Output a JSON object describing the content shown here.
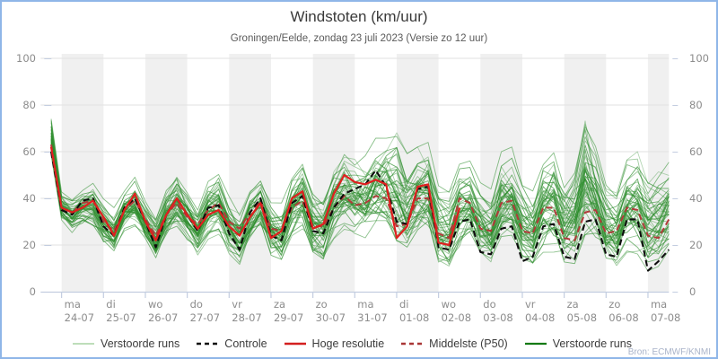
{
  "header": {
    "title": "Windstoten (km/uur)",
    "subtitle": "Groningen/Eelde, zondag 23 juli 2023 (Versie zo 12 uur)"
  },
  "source": {
    "label": "Bron: ECMWF/KNMI"
  },
  "colors": {
    "frame": "#8fb6e8",
    "band": "#f0f0f0",
    "grid": "#e2e2e2",
    "axis": "#c3cde0",
    "tick_label": "#8c8c8c",
    "ensemble": "#2e8e2e",
    "control": "#0d0d0d",
    "hires": "#e01f1f",
    "p50": "#b13a3a"
  },
  "legend": {
    "items": [
      {
        "label": "Verstoorde runs",
        "color": "#a9d3a4",
        "dash": "none",
        "sw": "1.6"
      },
      {
        "label": "Controle",
        "color": "#111111",
        "dash": "5 4",
        "sw": "2.4"
      },
      {
        "label": "Hoge resolutie",
        "color": "#d42020",
        "dash": "none",
        "sw": "2.6"
      },
      {
        "label": "Middelste (P50)",
        "color": "#a93636",
        "dash": "5 4",
        "sw": "2.4"
      },
      {
        "label": "Verstoorde runs",
        "color": "#157a15",
        "dash": "none",
        "sw": "2.2"
      }
    ]
  },
  "chart_data": {
    "type": "line",
    "title": "Windstoten (km/uur)",
    "subtitle": "Groningen/Eelde, zondag 23 juli 2023 (Versie zo 12 uur)",
    "ylabel": "km/uur",
    "ylim": [
      0,
      100
    ],
    "y_ticks": [
      0,
      20,
      40,
      60,
      80,
      100
    ],
    "grid": true,
    "legend_position": "bottom",
    "run_start": "zondag 23 juli 2023 12:00",
    "x_days": [
      {
        "dow": "ma",
        "date": "24-07",
        "shaded": true
      },
      {
        "dow": "di",
        "date": "25-07",
        "shaded": false
      },
      {
        "dow": "wo",
        "date": "26-07",
        "shaded": true
      },
      {
        "dow": "do",
        "date": "27-07",
        "shaded": false
      },
      {
        "dow": "vr",
        "date": "28-07",
        "shaded": true
      },
      {
        "dow": "za",
        "date": "29-07",
        "shaded": false
      },
      {
        "dow": "zo",
        "date": "30-07",
        "shaded": true
      },
      {
        "dow": "ma",
        "date": "31-07",
        "shaded": false
      },
      {
        "dow": "di",
        "date": "01-08",
        "shaded": true
      },
      {
        "dow": "wo",
        "date": "02-08",
        "shaded": false
      },
      {
        "dow": "do",
        "date": "03-08",
        "shaded": true
      },
      {
        "dow": "vr",
        "date": "04-08",
        "shaded": false
      },
      {
        "dow": "za",
        "date": "05-08",
        "shaded": true
      },
      {
        "dow": "zo",
        "date": "06-08",
        "shaded": false
      },
      {
        "dow": "ma",
        "date": "07-08",
        "shaded": true
      }
    ],
    "x_hours_since_run": [
      6,
      12,
      18,
      24,
      30,
      36,
      42,
      48,
      54,
      60,
      66,
      72,
      78,
      84,
      90,
      96,
      102,
      108,
      114,
      120,
      126,
      132,
      138,
      144,
      150,
      156,
      162,
      168,
      174,
      180,
      186,
      192,
      198,
      204,
      210,
      216,
      222,
      228,
      234,
      240,
      246,
      252,
      258,
      264,
      270,
      276,
      282,
      288,
      294,
      300,
      306,
      312,
      318,
      324,
      330,
      336,
      342,
      348,
      354,
      360
    ],
    "series": [
      {
        "name": "Controle",
        "values": [
          60,
          35,
          33,
          39,
          40,
          28,
          24,
          36,
          40,
          30,
          19,
          33,
          40,
          33,
          26,
          36,
          37,
          25,
          18,
          34,
          40,
          24,
          22,
          38,
          41,
          26,
          25,
          36,
          42,
          44,
          46,
          52,
          45,
          30,
          29,
          44,
          45,
          19,
          18,
          30,
          31,
          17,
          16,
          27,
          28,
          13,
          15,
          28,
          29,
          15,
          14,
          30,
          31,
          16,
          15,
          31,
          31,
          9,
          13,
          18
        ]
      },
      {
        "name": "Hoge resolutie",
        "values": [
          62,
          36,
          34,
          36,
          39,
          32,
          24,
          35,
          42,
          30,
          22,
          33,
          40,
          33,
          27,
          33,
          35,
          28,
          24,
          32,
          38,
          23,
          26,
          40,
          43,
          27,
          29,
          42,
          50,
          47,
          46,
          48,
          46,
          23,
          28,
          45,
          46,
          21,
          20,
          36,
          null,
          null,
          null,
          null,
          null,
          null,
          null,
          null,
          null,
          null,
          null,
          null,
          null,
          null,
          null,
          null,
          null,
          null,
          null,
          null
        ]
      },
      {
        "name": "Middelste (P50)",
        "values": [
          63,
          36,
          34,
          38,
          39,
          30,
          26,
          35,
          39,
          31,
          24,
          33,
          38,
          32,
          29,
          35,
          38,
          30,
          27,
          34,
          39,
          27,
          26,
          36,
          39,
          28,
          28,
          36,
          41,
          37,
          38,
          41,
          40,
          28,
          29,
          40,
          40,
          25,
          23,
          40,
          38,
          27,
          26,
          38,
          39,
          26,
          25,
          36,
          36,
          23,
          22,
          34,
          35,
          25,
          26,
          36,
          35,
          24,
          23,
          31
        ]
      },
      {
        "name": "Verstoorde runs (envelop min)",
        "values": [
          56,
          30,
          25,
          28,
          26,
          19,
          15,
          24,
          26,
          18,
          12,
          22,
          25,
          20,
          14,
          22,
          24,
          15,
          11,
          20,
          25,
          13,
          10,
          22,
          25,
          14,
          12,
          22,
          26,
          24,
          22,
          26,
          24,
          16,
          14,
          22,
          24,
          10,
          7,
          18,
          20,
          12,
          10,
          18,
          18,
          10,
          8,
          16,
          16,
          9,
          8,
          16,
          18,
          10,
          9,
          16,
          15,
          8,
          10,
          17
        ]
      },
      {
        "name": "Verstoorde runs (envelop max)",
        "values": [
          76,
          43,
          41,
          46,
          48,
          40,
          36,
          45,
          50,
          42,
          34,
          46,
          52,
          44,
          38,
          48,
          52,
          42,
          36,
          46,
          50,
          40,
          38,
          52,
          58,
          44,
          42,
          56,
          62,
          58,
          60,
          66,
          70,
          72,
          60,
          62,
          64,
          48,
          44,
          56,
          58,
          48,
          44,
          60,
          62,
          48,
          44,
          60,
          64,
          50,
          56,
          82,
          66,
          48,
          44,
          58,
          60,
          50,
          52,
          57
        ]
      }
    ],
    "ensemble": {
      "name": "Verstoorde runs",
      "count": 49,
      "seed": 20230723
    }
  }
}
